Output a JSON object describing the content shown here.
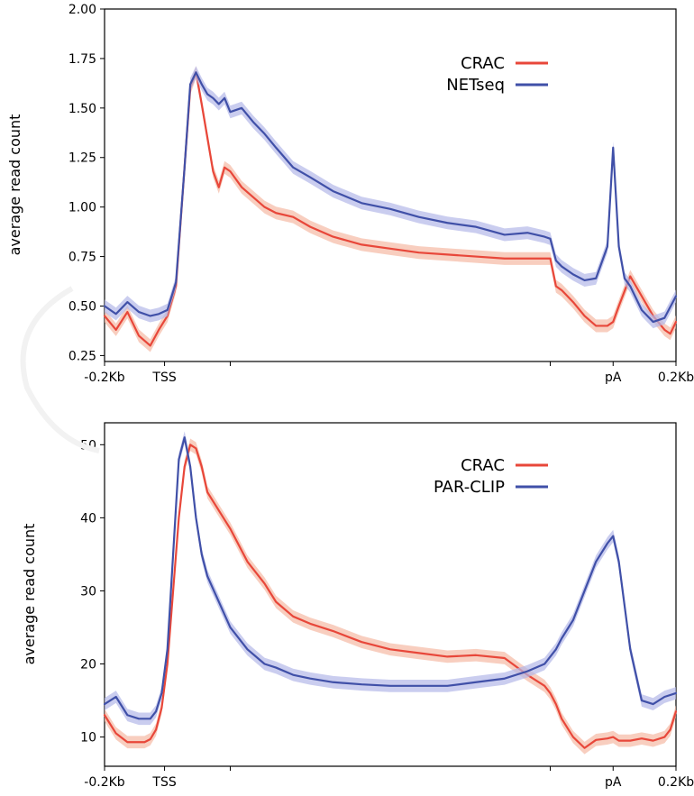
{
  "chart_data": [
    {
      "type": "line",
      "ylabel": "average read count",
      "ylim": [
        0.22,
        2.0
      ],
      "yticks": [
        {
          "value": 0.25,
          "label": "0.25"
        },
        {
          "value": 0.5,
          "label": "0.50"
        },
        {
          "value": 0.75,
          "label": "0.75"
        },
        {
          "value": 1.0,
          "label": "1.00"
        },
        {
          "value": 1.25,
          "label": "1.25"
        },
        {
          "value": 1.5,
          "label": "1.50"
        },
        {
          "value": 1.75,
          "label": "1.75"
        },
        {
          "value": 2.0,
          "label": "2.00"
        }
      ],
      "xlim": [
        0,
        100
      ],
      "xticks": [
        {
          "value": 0,
          "label": "-0.2Kb"
        },
        {
          "value": 10.5,
          "label": "TSS"
        },
        {
          "value": 22,
          "label": ""
        },
        {
          "value": 78,
          "label": ""
        },
        {
          "value": 89,
          "label": "pA"
        },
        {
          "value": 100,
          "label": "0.2Kb"
        }
      ],
      "legend_position": "top-right",
      "series": [
        {
          "name": "CRAC",
          "color": "#e8473a",
          "band_color": "#f5b9a4",
          "x": [
            0,
            2,
            4,
            6,
            8,
            9.5,
            11,
            12.5,
            14,
            15,
            16,
            17,
            18,
            19,
            20,
            21,
            22,
            24,
            26,
            28,
            30,
            33,
            36,
            40,
            45,
            50,
            55,
            60,
            65,
            70,
            74,
            77,
            78,
            79,
            80,
            82,
            84,
            86,
            88,
            89,
            90,
            92,
            94,
            96,
            98,
            99,
            100
          ],
          "y": [
            0.45,
            0.38,
            0.47,
            0.35,
            0.3,
            0.38,
            0.45,
            0.6,
            1.2,
            1.6,
            1.68,
            1.52,
            1.35,
            1.18,
            1.1,
            1.2,
            1.18,
            1.1,
            1.05,
            1.0,
            0.97,
            0.95,
            0.9,
            0.85,
            0.81,
            0.79,
            0.77,
            0.76,
            0.75,
            0.74,
            0.74,
            0.74,
            0.74,
            0.6,
            0.58,
            0.52,
            0.45,
            0.4,
            0.4,
            0.42,
            0.5,
            0.65,
            0.55,
            0.45,
            0.38,
            0.36,
            0.42
          ]
        },
        {
          "name": "NETseq",
          "color": "#4050a8",
          "band_color": "#b4b8e8",
          "x": [
            0,
            2,
            4,
            6,
            8,
            9.5,
            11,
            12.5,
            14,
            15,
            16,
            17,
            18,
            19,
            20,
            21,
            22,
            24,
            26,
            28,
            30,
            33,
            36,
            40,
            45,
            50,
            55,
            60,
            65,
            70,
            74,
            77,
            78,
            79,
            80,
            82,
            84,
            86,
            88,
            89,
            90,
            91,
            92,
            94,
            96,
            98,
            100
          ],
          "y": [
            0.5,
            0.46,
            0.52,
            0.47,
            0.45,
            0.46,
            0.48,
            0.62,
            1.2,
            1.62,
            1.68,
            1.62,
            1.57,
            1.55,
            1.52,
            1.55,
            1.48,
            1.5,
            1.43,
            1.37,
            1.3,
            1.2,
            1.15,
            1.08,
            1.02,
            0.99,
            0.95,
            0.92,
            0.9,
            0.86,
            0.87,
            0.85,
            0.84,
            0.73,
            0.7,
            0.66,
            0.63,
            0.64,
            0.8,
            1.3,
            0.8,
            0.64,
            0.6,
            0.48,
            0.42,
            0.44,
            0.55
          ]
        }
      ]
    },
    {
      "type": "line",
      "ylabel": "average read count",
      "ylim": [
        6,
        53
      ],
      "yticks": [
        {
          "value": 10,
          "label": "10"
        },
        {
          "value": 20,
          "label": "20"
        },
        {
          "value": 30,
          "label": "30"
        },
        {
          "value": 40,
          "label": "40"
        },
        {
          "value": 50,
          "label": "50"
        }
      ],
      "xlim": [
        0,
        100
      ],
      "xticks": [
        {
          "value": 0,
          "label": "-0.2Kb"
        },
        {
          "value": 10.5,
          "label": "TSS"
        },
        {
          "value": 22,
          "label": ""
        },
        {
          "value": 78,
          "label": ""
        },
        {
          "value": 89,
          "label": "pA"
        },
        {
          "value": 100,
          "label": "0.2Kb"
        }
      ],
      "legend_position": "top-right",
      "series": [
        {
          "name": "CRAC",
          "color": "#e8473a",
          "band_color": "#f5b9a4",
          "x": [
            0,
            2,
            4,
            6,
            7,
            8,
            9,
            10,
            11,
            12,
            13,
            14,
            15,
            16,
            17,
            18,
            20,
            22,
            25,
            28,
            30,
            33,
            36,
            40,
            45,
            50,
            55,
            60,
            65,
            70,
            74,
            77,
            78,
            79,
            80,
            82,
            84,
            86,
            88,
            89,
            90,
            92,
            94,
            96,
            98,
            99,
            100
          ],
          "y": [
            13,
            10.5,
            9.3,
            9.3,
            9.3,
            9.7,
            11,
            14,
            20,
            30,
            40,
            47,
            50,
            49.5,
            47,
            43.5,
            41,
            38.5,
            34,
            31,
            28.5,
            26.5,
            25.5,
            24.5,
            23,
            22,
            21.5,
            21,
            21.2,
            20.8,
            18.5,
            17,
            16,
            14.5,
            12.5,
            10,
            8.5,
            9.6,
            9.8,
            10,
            9.5,
            9.5,
            9.8,
            9.5,
            10,
            11,
            13.5
          ]
        },
        {
          "name": "PAR-CLIP",
          "color": "#4050a8",
          "band_color": "#b4b8e8",
          "x": [
            0,
            2,
            4,
            6,
            8,
            9,
            10,
            11,
            12,
            13,
            14,
            15,
            16,
            17,
            18,
            20,
            22,
            25,
            28,
            30,
            33,
            36,
            40,
            45,
            50,
            55,
            60,
            65,
            70,
            74,
            77,
            78,
            79,
            80,
            82,
            84,
            86,
            88,
            89,
            90,
            92,
            94,
            96,
            98,
            100
          ],
          "y": [
            14.5,
            15.5,
            13,
            12.5,
            12.5,
            13.5,
            16,
            22,
            35,
            48,
            51,
            47,
            40,
            35,
            32,
            28.5,
            25,
            22,
            20,
            19.5,
            18.5,
            18,
            17.5,
            17.2,
            17,
            17,
            17,
            17.5,
            18,
            19,
            20,
            21,
            22,
            23.5,
            26,
            30,
            34,
            36.5,
            37.5,
            34,
            22,
            15,
            14.5,
            15.5,
            16
          ]
        }
      ]
    }
  ]
}
